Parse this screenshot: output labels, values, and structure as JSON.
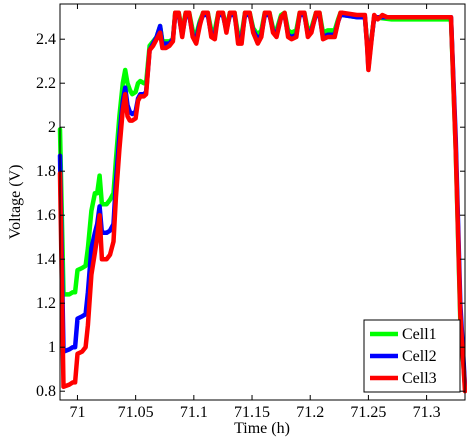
{
  "chart_data": {
    "type": "line",
    "title": "",
    "xlabel": "Time (h)",
    "ylabel": "Voltage (V)",
    "xlim": [
      70.985,
      71.333
    ],
    "ylim": [
      0.76,
      2.56
    ],
    "xticks": [
      71,
      71.05,
      71.1,
      71.15,
      71.2,
      71.25,
      71.3
    ],
    "xtick_labels": [
      "71",
      "71.05",
      "71.1",
      "71.15",
      "71.2",
      "71.25",
      "71.3"
    ],
    "yticks": [
      0.8,
      1,
      1.2,
      1.4,
      1.6,
      1.8,
      2,
      2.2,
      2.4
    ],
    "ytick_labels": [
      "0.8",
      "1",
      "1.2",
      "1.4",
      "1.6",
      "1.8",
      "2",
      "2.2",
      "2.4"
    ],
    "grid": false,
    "legend": "bottom-right",
    "series": [
      {
        "name": "Cell1",
        "color": "#00ff00",
        "points": [
          [
            70.985,
            1.99
          ],
          [
            70.988,
            1.24
          ],
          [
            70.993,
            1.24
          ],
          [
            70.996,
            1.25
          ],
          [
            70.998,
            1.25
          ],
          [
            71.0,
            1.35
          ],
          [
            71.004,
            1.36
          ],
          [
            71.007,
            1.37
          ],
          [
            71.009,
            1.45
          ],
          [
            71.012,
            1.62
          ],
          [
            71.015,
            1.7
          ],
          [
            71.017,
            1.7
          ],
          [
            71.019,
            1.78
          ],
          [
            71.021,
            1.65
          ],
          [
            71.025,
            1.65
          ],
          [
            71.028,
            1.67
          ],
          [
            71.031,
            1.7
          ],
          [
            71.033,
            1.85
          ],
          [
            71.036,
            2.05
          ],
          [
            71.039,
            2.2
          ],
          [
            71.041,
            2.26
          ],
          [
            71.043,
            2.2
          ],
          [
            71.045,
            2.17
          ],
          [
            71.047,
            2.15
          ],
          [
            71.05,
            2.16
          ],
          [
            71.052,
            2.2
          ],
          [
            71.054,
            2.21
          ],
          [
            71.057,
            2.2
          ],
          [
            71.059,
            2.2
          ],
          [
            71.062,
            2.37
          ],
          [
            71.065,
            2.39
          ],
          [
            71.068,
            2.41
          ],
          [
            71.071,
            2.46
          ],
          [
            71.073,
            2.39
          ],
          [
            71.076,
            2.39
          ],
          [
            71.079,
            2.39
          ],
          [
            71.082,
            2.4
          ],
          [
            71.084,
            2.52
          ],
          [
            71.087,
            2.52
          ],
          [
            71.09,
            2.44
          ],
          [
            71.093,
            2.52
          ],
          [
            71.096,
            2.52
          ],
          [
            71.099,
            2.44
          ],
          [
            71.102,
            2.42
          ],
          [
            71.105,
            2.48
          ],
          [
            71.108,
            2.52
          ],
          [
            71.112,
            2.52
          ],
          [
            71.115,
            2.44
          ],
          [
            71.118,
            2.44
          ],
          [
            71.121,
            2.52
          ],
          [
            71.125,
            2.52
          ],
          [
            71.128,
            2.45
          ],
          [
            71.131,
            2.52
          ],
          [
            71.135,
            2.52
          ],
          [
            71.138,
            2.42
          ],
          [
            71.141,
            2.42
          ],
          [
            71.144,
            2.52
          ],
          [
            71.148,
            2.52
          ],
          [
            71.151,
            2.45
          ],
          [
            71.155,
            2.42
          ],
          [
            71.158,
            2.44
          ],
          [
            71.161,
            2.52
          ],
          [
            71.165,
            2.52
          ],
          [
            71.168,
            2.45
          ],
          [
            71.171,
            2.44
          ],
          [
            71.175,
            2.51
          ],
          [
            71.178,
            2.52
          ],
          [
            71.181,
            2.44
          ],
          [
            71.184,
            2.43
          ],
          [
            71.188,
            2.44
          ],
          [
            71.191,
            2.52
          ],
          [
            71.195,
            2.52
          ],
          [
            71.198,
            2.44
          ],
          [
            71.201,
            2.45
          ],
          [
            71.205,
            2.52
          ],
          [
            71.208,
            2.52
          ],
          [
            71.211,
            2.43
          ],
          [
            71.215,
            2.44
          ],
          [
            71.218,
            2.44
          ],
          [
            71.221,
            2.44
          ],
          [
            71.224,
            2.49
          ],
          [
            71.226,
            2.52
          ],
          [
            71.228,
            2.51
          ],
          [
            71.24,
            2.5
          ],
          [
            71.247,
            2.5
          ],
          [
            71.249,
            2.38
          ],
          [
            71.25,
            2.29
          ],
          [
            71.252,
            2.38
          ],
          [
            71.255,
            2.5
          ],
          [
            71.27,
            2.49
          ],
          [
            71.3,
            2.49
          ],
          [
            71.321,
            2.49
          ],
          [
            71.325,
            1.9
          ],
          [
            71.329,
            1.12
          ],
          [
            71.333,
            0.82
          ]
        ]
      },
      {
        "name": "Cell2",
        "color": "#0000ff",
        "points": [
          [
            70.985,
            1.87
          ],
          [
            70.988,
            0.98
          ],
          [
            70.993,
            0.99
          ],
          [
            70.996,
            1.0
          ],
          [
            70.998,
            1.0
          ],
          [
            71.0,
            1.13
          ],
          [
            71.004,
            1.14
          ],
          [
            71.007,
            1.15
          ],
          [
            71.009,
            1.25
          ],
          [
            71.012,
            1.45
          ],
          [
            71.015,
            1.52
          ],
          [
            71.017,
            1.56
          ],
          [
            71.019,
            1.64
          ],
          [
            71.021,
            1.52
          ],
          [
            71.025,
            1.52
          ],
          [
            71.028,
            1.53
          ],
          [
            71.031,
            1.56
          ],
          [
            71.033,
            1.75
          ],
          [
            71.036,
            1.96
          ],
          [
            71.039,
            2.12
          ],
          [
            71.041,
            2.18
          ],
          [
            71.043,
            2.1
          ],
          [
            71.045,
            2.07
          ],
          [
            71.047,
            2.06
          ],
          [
            71.05,
            2.07
          ],
          [
            71.052,
            2.13
          ],
          [
            71.054,
            2.15
          ],
          [
            71.057,
            2.15
          ],
          [
            71.059,
            2.16
          ],
          [
            71.062,
            2.35
          ],
          [
            71.065,
            2.38
          ],
          [
            71.068,
            2.41
          ],
          [
            71.071,
            2.46
          ],
          [
            71.073,
            2.38
          ],
          [
            71.076,
            2.38
          ],
          [
            71.079,
            2.38
          ],
          [
            71.082,
            2.4
          ],
          [
            71.084,
            2.51
          ],
          [
            71.087,
            2.51
          ],
          [
            71.09,
            2.42
          ],
          [
            71.093,
            2.51
          ],
          [
            71.096,
            2.51
          ],
          [
            71.099,
            2.42
          ],
          [
            71.102,
            2.4
          ],
          [
            71.105,
            2.47
          ],
          [
            71.108,
            2.51
          ],
          [
            71.112,
            2.51
          ],
          [
            71.115,
            2.42
          ],
          [
            71.118,
            2.42
          ],
          [
            71.121,
            2.51
          ],
          [
            71.125,
            2.51
          ],
          [
            71.128,
            2.44
          ],
          [
            71.131,
            2.51
          ],
          [
            71.135,
            2.51
          ],
          [
            71.138,
            2.4
          ],
          [
            71.141,
            2.4
          ],
          [
            71.144,
            2.51
          ],
          [
            71.148,
            2.51
          ],
          [
            71.151,
            2.44
          ],
          [
            71.155,
            2.4
          ],
          [
            71.158,
            2.42
          ],
          [
            71.161,
            2.51
          ],
          [
            71.165,
            2.51
          ],
          [
            71.168,
            2.44
          ],
          [
            71.171,
            2.42
          ],
          [
            71.175,
            2.5
          ],
          [
            71.178,
            2.51
          ],
          [
            71.181,
            2.42
          ],
          [
            71.184,
            2.41
          ],
          [
            71.188,
            2.42
          ],
          [
            71.191,
            2.51
          ],
          [
            71.195,
            2.51
          ],
          [
            71.198,
            2.42
          ],
          [
            71.201,
            2.44
          ],
          [
            71.205,
            2.51
          ],
          [
            71.208,
            2.51
          ],
          [
            71.211,
            2.41
          ],
          [
            71.215,
            2.42
          ],
          [
            71.218,
            2.42
          ],
          [
            71.221,
            2.42
          ],
          [
            71.224,
            2.48
          ],
          [
            71.226,
            2.51
          ],
          [
            71.228,
            2.51
          ],
          [
            71.24,
            2.5
          ],
          [
            71.247,
            2.5
          ],
          [
            71.249,
            2.37
          ],
          [
            71.25,
            2.27
          ],
          [
            71.252,
            2.37
          ],
          [
            71.255,
            2.5
          ],
          [
            71.27,
            2.5
          ],
          [
            71.3,
            2.5
          ],
          [
            71.321,
            2.5
          ],
          [
            71.325,
            1.95
          ],
          [
            71.329,
            1.2
          ],
          [
            71.333,
            0.82
          ]
        ]
      },
      {
        "name": "Cell3",
        "color": "#ff0000",
        "points": [
          [
            70.985,
            1.79
          ],
          [
            70.988,
            0.82
          ],
          [
            70.993,
            0.83
          ],
          [
            70.996,
            0.84
          ],
          [
            70.998,
            0.84
          ],
          [
            71.0,
            0.97
          ],
          [
            71.004,
            0.98
          ],
          [
            71.007,
            1.0
          ],
          [
            71.009,
            1.1
          ],
          [
            71.012,
            1.33
          ],
          [
            71.015,
            1.43
          ],
          [
            71.017,
            1.5
          ],
          [
            71.019,
            1.6
          ],
          [
            71.021,
            1.4
          ],
          [
            71.025,
            1.4
          ],
          [
            71.028,
            1.42
          ],
          [
            71.031,
            1.48
          ],
          [
            71.033,
            1.68
          ],
          [
            71.036,
            1.9
          ],
          [
            71.039,
            2.08
          ],
          [
            71.041,
            2.15
          ],
          [
            71.043,
            2.05
          ],
          [
            71.045,
            2.03
          ],
          [
            71.047,
            2.03
          ],
          [
            71.05,
            2.04
          ],
          [
            71.052,
            2.12
          ],
          [
            71.054,
            2.14
          ],
          [
            71.057,
            2.14
          ],
          [
            71.059,
            2.15
          ],
          [
            71.062,
            2.35
          ],
          [
            71.065,
            2.37
          ],
          [
            71.068,
            2.4
          ],
          [
            71.071,
            2.43
          ],
          [
            71.073,
            2.36
          ],
          [
            71.076,
            2.36
          ],
          [
            71.079,
            2.37
          ],
          [
            71.082,
            2.39
          ],
          [
            71.084,
            2.52
          ],
          [
            71.087,
            2.52
          ],
          [
            71.09,
            2.41
          ],
          [
            71.093,
            2.52
          ],
          [
            71.096,
            2.52
          ],
          [
            71.099,
            2.41
          ],
          [
            71.102,
            2.38
          ],
          [
            71.105,
            2.46
          ],
          [
            71.108,
            2.52
          ],
          [
            71.112,
            2.52
          ],
          [
            71.115,
            2.41
          ],
          [
            71.118,
            2.4
          ],
          [
            71.121,
            2.52
          ],
          [
            71.125,
            2.52
          ],
          [
            71.128,
            2.43
          ],
          [
            71.131,
            2.52
          ],
          [
            71.135,
            2.52
          ],
          [
            71.138,
            2.38
          ],
          [
            71.141,
            2.38
          ],
          [
            71.144,
            2.52
          ],
          [
            71.148,
            2.52
          ],
          [
            71.151,
            2.43
          ],
          [
            71.155,
            2.38
          ],
          [
            71.158,
            2.41
          ],
          [
            71.161,
            2.52
          ],
          [
            71.165,
            2.52
          ],
          [
            71.168,
            2.43
          ],
          [
            71.171,
            2.41
          ],
          [
            71.175,
            2.5
          ],
          [
            71.178,
            2.52
          ],
          [
            71.181,
            2.41
          ],
          [
            71.184,
            2.4
          ],
          [
            71.188,
            2.41
          ],
          [
            71.191,
            2.52
          ],
          [
            71.195,
            2.52
          ],
          [
            71.198,
            2.41
          ],
          [
            71.201,
            2.43
          ],
          [
            71.205,
            2.52
          ],
          [
            71.208,
            2.52
          ],
          [
            71.211,
            2.4
          ],
          [
            71.215,
            2.41
          ],
          [
            71.218,
            2.41
          ],
          [
            71.221,
            2.41
          ],
          [
            71.224,
            2.48
          ],
          [
            71.226,
            2.52
          ],
          [
            71.228,
            2.52
          ],
          [
            71.24,
            2.51
          ],
          [
            71.247,
            2.51
          ],
          [
            71.249,
            2.36
          ],
          [
            71.25,
            2.26
          ],
          [
            71.252,
            2.36
          ],
          [
            71.255,
            2.51
          ],
          [
            71.258,
            2.49
          ],
          [
            71.262,
            2.51
          ],
          [
            71.266,
            2.5
          ],
          [
            71.3,
            2.5
          ],
          [
            71.321,
            2.5
          ],
          [
            71.325,
            1.9
          ],
          [
            71.329,
            1.15
          ],
          [
            71.333,
            0.8
          ]
        ]
      }
    ]
  }
}
